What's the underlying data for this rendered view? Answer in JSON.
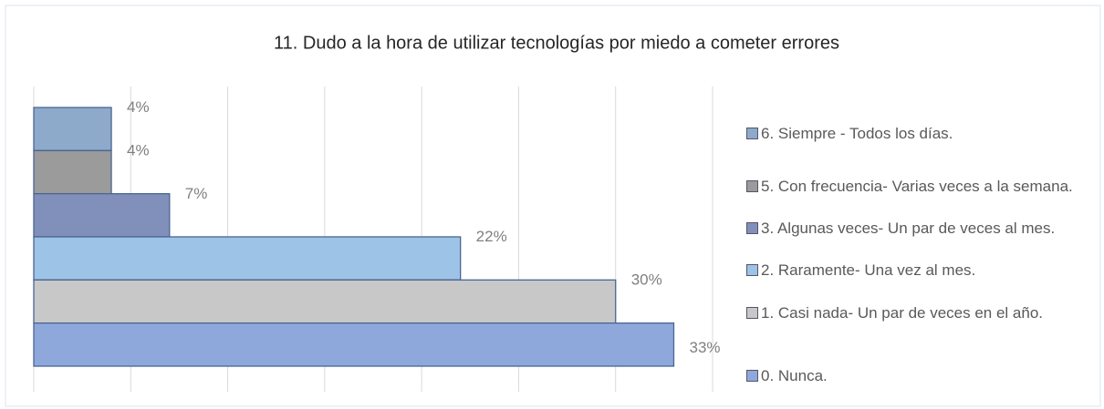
{
  "chart_data": {
    "type": "barh",
    "title": "11. Dudo a la hora de utilizar tecnologías por miedo a cometer errores",
    "categories": [
      "6. Siempre - Todos los días.",
      "5. Con frecuencia- Varias veces a la semana.",
      "3. Algunas veces- Un par de veces al mes.",
      "2. Raramente- Una vez al mes.",
      "1. Casi nada- Un par de veces en el año.",
      "0. Nunca."
    ],
    "values": [
      4,
      4,
      7,
      22,
      30,
      33
    ],
    "value_labels": [
      "4%",
      "4%",
      "7%",
      "22%",
      "30%",
      "33%"
    ],
    "colors": [
      "#8eaacb",
      "#9b9b9b",
      "#8190bb",
      "#9dc3e6",
      "#c8c8c8",
      "#8fa8dc"
    ],
    "xlim": [
      0,
      35
    ],
    "xticks": [
      0,
      5,
      10,
      15,
      20,
      25,
      30,
      35
    ],
    "grid": true,
    "legend": "right"
  }
}
